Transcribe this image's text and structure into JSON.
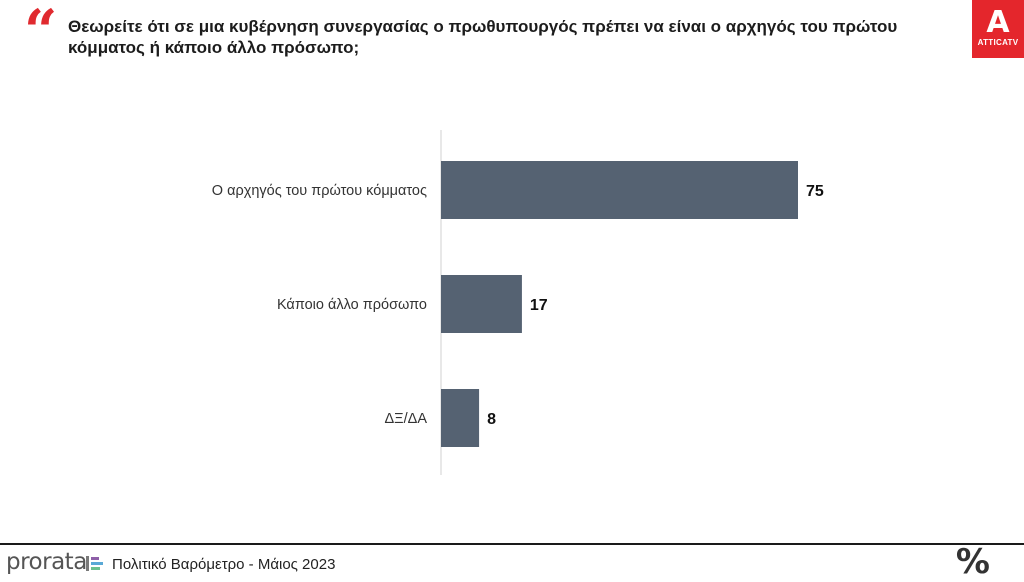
{
  "header": {
    "quote_icon": "quote-icon",
    "question": "Θεωρείτε ότι σε μια κυβέρνηση συνεργασίας ο πρωθυπουργός πρέπει να είναι ο αρχηγός του πρώτου κόμματος ή κάποιο άλλο πρόσωπο;",
    "logo_letter": "A",
    "logo_text": "ATTICATV"
  },
  "chart_data": {
    "type": "bar",
    "orientation": "horizontal",
    "categories": [
      "Ο αρχηγός του πρώτου κόμματος",
      "Κάποιο άλλο πρόσωπο",
      "ΔΞ/ΔΑ"
    ],
    "values": [
      75,
      17,
      8
    ],
    "bar_color": "#556272",
    "xlim": [
      0,
      80
    ],
    "grid": false,
    "title": "",
    "xlabel": "",
    "ylabel": ""
  },
  "footer": {
    "brand": "prorata",
    "text": "Πολιτικό Βαρόμετρο - Μάιος 2023",
    "percent_icon": "%"
  },
  "colors": {
    "accent": "#e4262c",
    "bar": "#556272"
  }
}
